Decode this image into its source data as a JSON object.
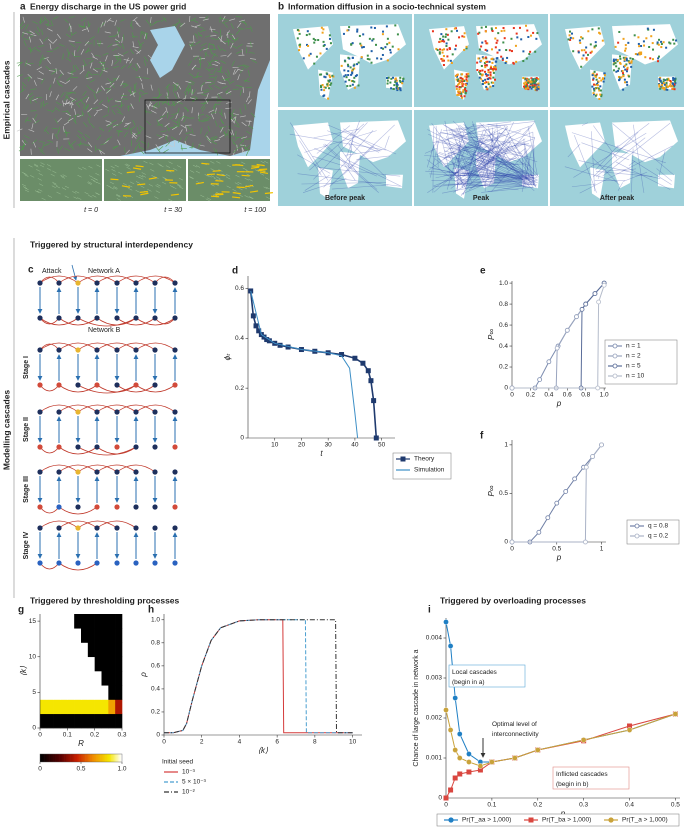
{
  "figure": {
    "row_labels": [
      "Empirical cascades",
      "Modelling cascades"
    ],
    "section_titles": [
      "Triggered by structural interdependency",
      "Triggered by thresholding processes",
      "Triggered by overloading processes"
    ]
  },
  "panel_a": {
    "letter": "a",
    "title": "Energy discharge in the US power grid",
    "time_labels": [
      "t = 0",
      "t = 30",
      "t = 100"
    ]
  },
  "panel_b": {
    "letter": "b",
    "title": "Information diffusion in a socio-technical system",
    "phase_labels": [
      "Before peak",
      "Peak",
      "After peak"
    ]
  },
  "panel_c": {
    "letter": "c",
    "attack": "Attack",
    "network_a": "Network A",
    "network_b": "Network B",
    "stages": [
      "Stage I",
      "Stage II",
      "Stage III",
      "Stage IV"
    ]
  },
  "chart_data": [
    {
      "type": "line",
      "panel": "d",
      "xlabel": "t",
      "ylabel": "ϕₜ",
      "xlim": [
        0,
        55
      ],
      "xticks": [
        10,
        20,
        30,
        40,
        50
      ],
      "ylim": [
        0,
        0.65
      ],
      "yticks": [
        0,
        0.2,
        0.4,
        0.6
      ],
      "series": [
        {
          "name": "Theory",
          "color": "#1f3a6e",
          "marker": "square",
          "x": [
            1,
            2,
            3,
            4,
            5,
            6,
            7,
            8,
            10,
            12,
            15,
            20,
            25,
            30,
            35,
            40,
            43,
            45,
            46,
            47,
            48
          ],
          "values": [
            0.59,
            0.49,
            0.45,
            0.43,
            0.415,
            0.405,
            0.395,
            0.39,
            0.38,
            0.372,
            0.365,
            0.355,
            0.348,
            0.342,
            0.335,
            0.32,
            0.3,
            0.27,
            0.23,
            0.15,
            0
          ]
        },
        {
          "name": "Simulation",
          "color": "#3d8fc6",
          "marker": "none",
          "x": [
            1,
            5,
            10,
            20,
            30,
            35,
            38,
            40,
            41
          ],
          "values": [
            0.59,
            0.415,
            0.38,
            0.355,
            0.342,
            0.33,
            0.28,
            0.1,
            0
          ]
        }
      ]
    },
    {
      "type": "line",
      "panel": "e",
      "xlabel": "p",
      "ylabel": "P∞",
      "xlim": [
        0,
        1.02
      ],
      "xticks": [
        0,
        0.2,
        0.4,
        0.6,
        0.8,
        {
          "value": 1,
          "label": "1.0"
        }
      ],
      "ylim": [
        0,
        1.02
      ],
      "yticks": [
        0,
        0.2,
        0.4,
        0.6,
        0.8,
        {
          "value": 1,
          "label": "1.0"
        }
      ],
      "series": [
        {
          "name": "n = 1",
          "color": "#7d8db0",
          "marker": "open-circle",
          "x": [
            0,
            0.25,
            0.3,
            0.4,
            0.5,
            0.6,
            0.7,
            0.8,
            0.9,
            1
          ],
          "values": [
            0,
            0,
            0.08,
            0.25,
            0.4,
            0.55,
            0.68,
            0.8,
            0.9,
            1
          ]
        },
        {
          "name": "n = 2",
          "color": "#9aa5bf",
          "marker": "open-circle",
          "x": [
            0,
            0.48,
            0.49,
            0.6,
            0.7,
            0.8,
            0.9,
            1
          ],
          "values": [
            0,
            0,
            0.38,
            0.55,
            0.68,
            0.8,
            0.9,
            1
          ]
        },
        {
          "name": "n = 5",
          "color": "#5a6d99",
          "marker": "open-circle",
          "x": [
            0,
            0.75,
            0.76,
            0.8,
            0.9,
            1
          ],
          "values": [
            0,
            0,
            0.75,
            0.8,
            0.9,
            1
          ]
        },
        {
          "name": "n = 10",
          "color": "#b5bccb",
          "marker": "open-circle",
          "x": [
            0,
            0.93,
            0.94,
            1
          ],
          "values": [
            0,
            0,
            0.82,
            0.98
          ]
        }
      ]
    },
    {
      "type": "line",
      "panel": "f",
      "xlabel": "p",
      "ylabel": "P∞",
      "xlim": [
        0,
        1.05
      ],
      "xticks": [
        0,
        0.5,
        1
      ],
      "ylim": [
        0,
        1.05
      ],
      "yticks": [
        0,
        0.5,
        1
      ],
      "series": [
        {
          "name": "q = 0.8",
          "color": "#6f7fa6",
          "marker": "open-circle",
          "x": [
            0,
            0.2,
            0.3,
            0.4,
            0.5,
            0.6,
            0.7,
            0.8,
            0.9,
            1
          ],
          "values": [
            0,
            0,
            0.1,
            0.25,
            0.4,
            0.52,
            0.65,
            0.77,
            0.88,
            1
          ]
        },
        {
          "name": "q = 0.2",
          "color": "#a9b2c6",
          "marker": "open-circle",
          "x": [
            0,
            0.82,
            0.83,
            0.9,
            1
          ],
          "values": [
            0,
            0,
            0.77,
            0.88,
            1
          ]
        }
      ]
    },
    {
      "type": "heatmap",
      "panel": "g",
      "xlabel": "R",
      "ylabel": "⟨k⟩",
      "xlim": [
        0,
        0.3
      ],
      "xticks": [
        0,
        0.1,
        0.2,
        0.3
      ],
      "ylim": [
        0,
        16
      ],
      "yticks": [
        0,
        5,
        10,
        15
      ],
      "x_bins": [
        0,
        0.025,
        0.05,
        0.075,
        0.1,
        0.125,
        0.15,
        0.175,
        0.2,
        0.225,
        0.25,
        0.275,
        0.3
      ],
      "y_bins": [
        0,
        2,
        4,
        6,
        8,
        10,
        12,
        14,
        16
      ],
      "z": [
        [
          0,
          0,
          0,
          0,
          0,
          0,
          0,
          0,
          0,
          0,
          0,
          0
        ],
        [
          0.85,
          0.85,
          0.85,
          0.85,
          0.85,
          0.85,
          0.85,
          0.85,
          0.85,
          0.85,
          0.7,
          0.4
        ],
        [
          1,
          1,
          1,
          1,
          1,
          1,
          1,
          1,
          1,
          1,
          0,
          0
        ],
        [
          1,
          1,
          1,
          1,
          1,
          1,
          1,
          1,
          1,
          0,
          0,
          0
        ],
        [
          1,
          1,
          1,
          1,
          1,
          1,
          1,
          1,
          0,
          0,
          0,
          0
        ],
        [
          1,
          1,
          1,
          1,
          1,
          1,
          1,
          0,
          0,
          0,
          0,
          0
        ],
        [
          1,
          1,
          1,
          1,
          1,
          1,
          0,
          0,
          0,
          0,
          0,
          0
        ],
        [
          1,
          1,
          1,
          1,
          1,
          0,
          0,
          0,
          0,
          0,
          0,
          0
        ]
      ],
      "colorbar_lim": [
        0,
        1
      ],
      "colorbar_ticks": [
        0,
        0.5,
        {
          "value": 1,
          "label": "1.0"
        }
      ]
    },
    {
      "type": "line",
      "panel": "h",
      "xlabel": "⟨k⟩",
      "ylabel": "ρ",
      "legend_title": "Initial seed",
      "xlim": [
        0,
        10.5
      ],
      "xticks": [
        0,
        2,
        4,
        6,
        8,
        10
      ],
      "ylim": [
        0,
        1.05
      ],
      "yticks": [
        0,
        0.2,
        0.4,
        0.6,
        0.8,
        {
          "value": 1,
          "label": "1.0"
        }
      ],
      "x": [
        0,
        0.5,
        1,
        1.2,
        1.5,
        2,
        2.5,
        3,
        4,
        5,
        6,
        6.3,
        6.35,
        7,
        7.5,
        7.55,
        8,
        9,
        9.1,
        9.15,
        10
      ],
      "series": [
        {
          "name": "10⁻³",
          "color": "#d43a3a",
          "marker": "none",
          "dash": "solid",
          "values": [
            0.02,
            0.02,
            0.04,
            0.1,
            0.3,
            0.6,
            0.82,
            0.93,
            0.99,
            1,
            1,
            1,
            0.02,
            0.02,
            0.02,
            0.02,
            0.02,
            0.02,
            0.02,
            0.02,
            0.02
          ]
        },
        {
          "name": "5 × 10⁻³",
          "color": "#4a9fd0",
          "marker": "none",
          "dash": "dashed",
          "values": [
            0.02,
            0.02,
            0.04,
            0.1,
            0.3,
            0.6,
            0.82,
            0.93,
            0.99,
            1,
            1,
            1,
            1,
            1,
            1,
            0.02,
            0.02,
            0.02,
            0.02,
            0.02,
            0.02
          ]
        },
        {
          "name": "10⁻²",
          "color": "#333333",
          "marker": "none",
          "dash": "dashdot",
          "values": [
            0.02,
            0.02,
            0.04,
            0.1,
            0.3,
            0.6,
            0.82,
            0.93,
            0.99,
            1,
            1,
            1,
            1,
            1,
            1,
            1,
            1,
            1,
            1,
            0.02,
            0.02
          ]
        }
      ]
    },
    {
      "type": "line",
      "panel": "i",
      "xlabel": "p",
      "ylabel": "Chance of large cascade in network a",
      "xlim": [
        0,
        0.51
      ],
      "xticks": [
        0,
        0.1,
        0.2,
        0.3,
        0.4,
        0.5
      ],
      "ylim": [
        0,
        0.0045
      ],
      "yticks": [
        0,
        0.001,
        0.002,
        0.003,
        0.004
      ],
      "x": [
        0,
        0.01,
        0.02,
        0.03,
        0.05,
        0.075,
        0.1,
        0.15,
        0.2,
        0.3,
        0.4,
        0.5
      ],
      "series": [
        {
          "name": "Pr(T_aa > 1,000)",
          "color": "#1f7fc4",
          "marker": "circle",
          "values": [
            0.0044,
            0.0038,
            0.0025,
            0.0016,
            0.0011,
            0.0009,
            0.0009,
            0.001,
            0.0012,
            0.00145,
            0.0017,
            0.0021
          ]
        },
        {
          "name": "Pr(T_ba > 1,000)",
          "color": "#d9463f",
          "marker": "square",
          "values": [
            0,
            0.0002,
            0.0005,
            0.0006,
            0.00065,
            0.0007,
            0.0009,
            0.001,
            0.0012,
            0.00143,
            0.0018,
            0.0021
          ]
        },
        {
          "name": "Pr(T_a > 1,000)",
          "color": "#c9a23a",
          "marker": "circle",
          "values": [
            0.0022,
            0.0017,
            0.0012,
            0.001,
            0.0009,
            0.0008,
            0.0009,
            0.001,
            0.0012,
            0.00145,
            0.0017,
            0.0021
          ]
        }
      ],
      "annotations": [
        [
          "Local cascades",
          "(begin in a)"
        ],
        [
          "Optimal level of",
          "interconnectivity"
        ],
        [
          "Inflicted cascades",
          "(begin in b)"
        ]
      ]
    }
  ]
}
